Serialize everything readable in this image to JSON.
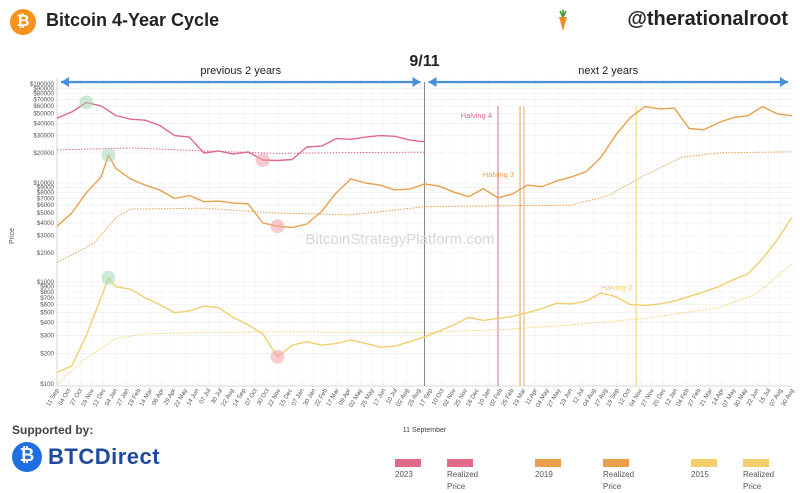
{
  "header": {
    "title": "Bitcoin 4-Year Cycle",
    "handle": "@therationalroot"
  },
  "footer": {
    "supported_label": "Supported by:",
    "sponsor": "BTCDirect",
    "legend": [
      {
        "label": "2023",
        "color": "#e06a88"
      },
      {
        "label": "Realized Price",
        "color": "#e06a88"
      },
      {
        "label": "2019",
        "color": "#e8a04c"
      },
      {
        "label": "Realized Price",
        "color": "#e8a04c"
      },
      {
        "label": "2015",
        "color": "#f2cf6c"
      },
      {
        "label": "Realized Price",
        "color": "#f2cf6c"
      }
    ]
  },
  "chart_data": {
    "type": "line",
    "scale": "log",
    "center_label": "9/11",
    "xlabel": "11 September",
    "ylabel": "Price",
    "watermark": "BitcoinStrategyPlatform.com",
    "prev_label": "previous 2 years",
    "next_label": "next 2 years",
    "grid": true,
    "colors": {
      "c2023": "#e06a88",
      "c2019": "#e8a04c",
      "c2015": "#f2cf6c",
      "arrow": "#4a90d9"
    },
    "tick_labels_top": [
      "$100000",
      "$90000",
      "$80000",
      "$70000",
      "$60000",
      "$50000",
      "$40000",
      "$30000",
      "$20000"
    ],
    "tick_labels_mid": [
      "$10000",
      "$9000",
      "$8000",
      "$7000",
      "$6000",
      "$5000",
      "$4000",
      "$3000",
      "$2000"
    ],
    "tick_labels_bot": [
      "$1000",
      "$900",
      "$800",
      "$700",
      "$600",
      "$500",
      "$400",
      "$300",
      "$200",
      "$100"
    ],
    "x_ticks": [
      "11 Sep",
      "04 Oct",
      "27 Oct",
      "19 Nov",
      "12 Dec",
      "04 Jan",
      "27 Jan",
      "19 Feb",
      "14 Mar",
      "06 Apr",
      "29 Apr",
      "22 May",
      "14 Jun",
      "07 Jul",
      "30 Jul",
      "22 Aug",
      "14 Sep",
      "07 Oct",
      "30 Oct",
      "22 Nov",
      "15 Dec",
      "07 Jan",
      "30 Jan",
      "22 Feb",
      "17 Mar",
      "09 Apr",
      "02 May",
      "25 May",
      "17 Jun",
      "10 Jul",
      "02 Aug",
      "25 Aug",
      "17 Sep",
      "10 Oct",
      "02 Nov",
      "25 Nov",
      "18 Dec",
      "10 Jan",
      "02 Feb",
      "25 Feb",
      "19 Mar",
      "11 Apr",
      "04 May",
      "27 May",
      "19 Jun",
      "12 Jul",
      "04 Aug",
      "27 Aug",
      "19 Sep",
      "12 Oct",
      "04 Nov",
      "27 Nov",
      "20 Dec",
      "12 Jan",
      "04 Feb",
      "27 Feb",
      "21 Mar",
      "14 Apr",
      "07 May",
      "30 May",
      "22 Jun",
      "15 Jul",
      "07 Aug",
      "30 Aug"
    ],
    "halvings": [
      {
        "label": "Halving 4",
        "x": 0.6
      },
      {
        "label": "Halving 3",
        "x": 0.63
      },
      {
        "label": "Halving 2",
        "x": 0.788
      }
    ],
    "series": [
      {
        "name": "2023",
        "y_unit": "USD",
        "range": [
          0,
          0.5
        ],
        "points": [
          [
            0,
            45000
          ],
          [
            0.02,
            52000
          ],
          [
            0.04,
            65000
          ],
          [
            0.06,
            60000
          ],
          [
            0.08,
            48000
          ],
          [
            0.1,
            44000
          ],
          [
            0.12,
            43000
          ],
          [
            0.14,
            38000
          ],
          [
            0.16,
            30000
          ],
          [
            0.18,
            29000
          ],
          [
            0.2,
            20000
          ],
          [
            0.22,
            21000
          ],
          [
            0.24,
            19500
          ],
          [
            0.26,
            20500
          ],
          [
            0.28,
            17000
          ],
          [
            0.3,
            16800
          ],
          [
            0.32,
            17200
          ],
          [
            0.34,
            23000
          ],
          [
            0.36,
            23500
          ],
          [
            0.38,
            28000
          ],
          [
            0.4,
            27500
          ],
          [
            0.42,
            29000
          ],
          [
            0.44,
            30000
          ],
          [
            0.46,
            29500
          ],
          [
            0.48,
            27000
          ],
          [
            0.5,
            26000
          ]
        ]
      },
      {
        "name": "2023 Realized Price",
        "y_unit": "USD",
        "range": [
          0,
          0.5
        ],
        "points": [
          [
            0,
            21500
          ],
          [
            0.1,
            22500
          ],
          [
            0.2,
            21000
          ],
          [
            0.3,
            19800
          ],
          [
            0.4,
            20200
          ],
          [
            0.5,
            20400
          ]
        ]
      },
      {
        "name": "2019",
        "y_unit": "USD",
        "range": [
          0,
          1
        ],
        "points": [
          [
            0,
            3700
          ],
          [
            0.02,
            5000
          ],
          [
            0.04,
            8000
          ],
          [
            0.06,
            11500
          ],
          [
            0.07,
            19000
          ],
          [
            0.08,
            14000
          ],
          [
            0.1,
            11000
          ],
          [
            0.12,
            9500
          ],
          [
            0.14,
            8500
          ],
          [
            0.16,
            7000
          ],
          [
            0.18,
            7500
          ],
          [
            0.2,
            6500
          ],
          [
            0.22,
            6600
          ],
          [
            0.24,
            6300
          ],
          [
            0.26,
            6200
          ],
          [
            0.28,
            4000
          ],
          [
            0.3,
            3700
          ],
          [
            0.32,
            3600
          ],
          [
            0.34,
            3900
          ],
          [
            0.36,
            5200
          ],
          [
            0.38,
            8000
          ],
          [
            0.4,
            11000
          ],
          [
            0.42,
            10000
          ],
          [
            0.44,
            9500
          ],
          [
            0.46,
            8500
          ],
          [
            0.48,
            8700
          ],
          [
            0.5,
            9800
          ],
          [
            0.52,
            9300
          ],
          [
            0.54,
            8100
          ],
          [
            0.56,
            7300
          ],
          [
            0.58,
            8800
          ],
          [
            0.6,
            7100
          ],
          [
            0.62,
            7800
          ],
          [
            0.64,
            9500
          ],
          [
            0.66,
            9200
          ],
          [
            0.68,
            10500
          ],
          [
            0.7,
            11500
          ],
          [
            0.72,
            13000
          ],
          [
            0.74,
            18000
          ],
          [
            0.76,
            30000
          ],
          [
            0.78,
            45000
          ],
          [
            0.8,
            58000
          ],
          [
            0.82,
            55000
          ],
          [
            0.84,
            56000
          ],
          [
            0.86,
            35000
          ],
          [
            0.88,
            34000
          ],
          [
            0.9,
            40000
          ],
          [
            0.92,
            45000
          ],
          [
            0.94,
            47000
          ],
          [
            0.96,
            58000
          ],
          [
            0.98,
            49000
          ],
          [
            1,
            47000
          ]
        ]
      },
      {
        "name": "2019 Realized Price",
        "y_unit": "USD",
        "range": [
          0,
          1
        ],
        "points": [
          [
            0,
            1600
          ],
          [
            0.05,
            2500
          ],
          [
            0.08,
            4500
          ],
          [
            0.1,
            5500
          ],
          [
            0.2,
            5600
          ],
          [
            0.3,
            5000
          ],
          [
            0.4,
            4800
          ],
          [
            0.5,
            5800
          ],
          [
            0.6,
            5900
          ],
          [
            0.7,
            6000
          ],
          [
            0.75,
            7500
          ],
          [
            0.8,
            12000
          ],
          [
            0.85,
            18000
          ],
          [
            0.9,
            20000
          ],
          [
            1,
            20500
          ]
        ]
      },
      {
        "name": "2015",
        "y_unit": "USD",
        "range": [
          0,
          1
        ],
        "points": [
          [
            0,
            130
          ],
          [
            0.02,
            150
          ],
          [
            0.04,
            300
          ],
          [
            0.06,
            700
          ],
          [
            0.07,
            1100
          ],
          [
            0.08,
            900
          ],
          [
            0.1,
            850
          ],
          [
            0.12,
            700
          ],
          [
            0.14,
            600
          ],
          [
            0.16,
            500
          ],
          [
            0.18,
            520
          ],
          [
            0.2,
            580
          ],
          [
            0.22,
            560
          ],
          [
            0.24,
            450
          ],
          [
            0.26,
            380
          ],
          [
            0.28,
            310
          ],
          [
            0.3,
            185
          ],
          [
            0.32,
            240
          ],
          [
            0.34,
            260
          ],
          [
            0.36,
            240
          ],
          [
            0.38,
            250
          ],
          [
            0.4,
            270
          ],
          [
            0.42,
            250
          ],
          [
            0.44,
            230
          ],
          [
            0.46,
            235
          ],
          [
            0.48,
            260
          ],
          [
            0.5,
            290
          ],
          [
            0.52,
            330
          ],
          [
            0.54,
            380
          ],
          [
            0.56,
            450
          ],
          [
            0.58,
            420
          ],
          [
            0.6,
            440
          ],
          [
            0.62,
            460
          ],
          [
            0.64,
            500
          ],
          [
            0.66,
            550
          ],
          [
            0.68,
            620
          ],
          [
            0.7,
            610
          ],
          [
            0.72,
            650
          ],
          [
            0.74,
            780
          ],
          [
            0.76,
            720
          ],
          [
            0.78,
            600
          ],
          [
            0.8,
            590
          ],
          [
            0.82,
            610
          ],
          [
            0.84,
            650
          ],
          [
            0.86,
            720
          ],
          [
            0.88,
            800
          ],
          [
            0.9,
            900
          ],
          [
            0.92,
            1050
          ],
          [
            0.94,
            1200
          ],
          [
            0.96,
            1700
          ],
          [
            0.98,
            2600
          ],
          [
            1,
            4300
          ]
        ]
      },
      {
        "name": "2015 Realized Price",
        "y_unit": "USD",
        "range": [
          0,
          1
        ],
        "points": [
          [
            0,
            100
          ],
          [
            0.04,
            180
          ],
          [
            0.08,
            280
          ],
          [
            0.12,
            310
          ],
          [
            0.2,
            320
          ],
          [
            0.3,
            325
          ],
          [
            0.4,
            320
          ],
          [
            0.5,
            320
          ],
          [
            0.6,
            340
          ],
          [
            0.7,
            380
          ],
          [
            0.8,
            440
          ],
          [
            0.9,
            560
          ],
          [
            0.95,
            750
          ],
          [
            1,
            1500
          ]
        ]
      }
    ]
  }
}
